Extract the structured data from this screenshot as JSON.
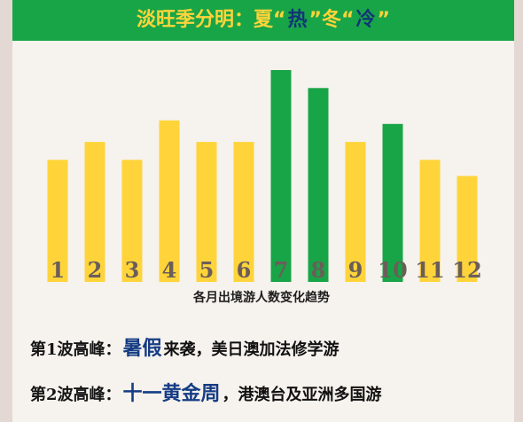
{
  "page": {
    "background": "#e3d8d3",
    "panel_background": "#f6f2ed"
  },
  "banner": {
    "part1": "淡旺季分明：夏“",
    "part2": "热",
    "part3": "”冬“",
    "part4": "冷",
    "part5": "”",
    "background": "#18a547",
    "yellow": "#ffd43a",
    "blue": "#123477"
  },
  "chart_data": {
    "type": "bar",
    "caption": "各月出境游人数变化趋势",
    "categories": [
      "1",
      "2",
      "3",
      "4",
      "5",
      "6",
      "7",
      "8",
      "9",
      "10",
      "11",
      "12"
    ],
    "values": [
      6.8,
      7.8,
      6.8,
      9.0,
      7.8,
      7.8,
      11.8,
      10.8,
      7.8,
      8.8,
      6.8,
      5.9
    ],
    "colors": [
      "#ffd43a",
      "#ffd43a",
      "#ffd43a",
      "#ffd43a",
      "#ffd43a",
      "#ffd43a",
      "#18a547",
      "#18a547",
      "#ffd43a",
      "#18a547",
      "#ffd43a",
      "#ffd43a"
    ],
    "ylim": [
      0,
      12
    ],
    "grid": false,
    "legend": "none"
  },
  "waves": [
    {
      "label": "第1波高峰：",
      "highlight": "暑假",
      "desc": "来袭，美日澳加法修学游"
    },
    {
      "label": "第2波高峰：",
      "highlight": "十一黄金周",
      "desc": "，港澳台及亚洲多国游"
    }
  ]
}
